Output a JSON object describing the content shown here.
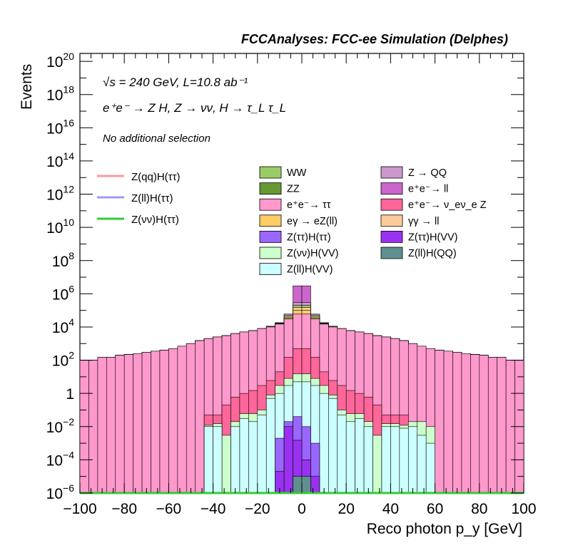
{
  "header": {
    "title": "FCCAnalyses: FCC-ee Simulation (Delphes)"
  },
  "annotations": {
    "energy_line": "√s = 240 GeV, L=10.8 ab⁻¹",
    "process_line": "e⁺e⁻ → Z H, Z → νν, H → τ_L τ_L",
    "selection": "No additional selection"
  },
  "chart_data": {
    "type": "bar",
    "stacked": true,
    "log_y": true,
    "xlabel": "Reco photon p_y [GeV]",
    "ylabel": "Events",
    "xlim": [
      -100,
      100
    ],
    "ylim": [
      1e-06,
      3e+20
    ],
    "bin_width": 4,
    "x_ticks": [
      "−100",
      "−80",
      "−60",
      "−40",
      "−20",
      "0",
      "20",
      "40",
      "60",
      "80",
      "100"
    ],
    "y_ticks": [
      {
        "base": "10",
        "exp": "20",
        "value": 1e+20
      },
      {
        "base": "10",
        "exp": "18",
        "value": 1e+18
      },
      {
        "base": "10",
        "exp": "16",
        "value": 1e+16
      },
      {
        "base": "10",
        "exp": "14",
        "value": 100000000000000.0
      },
      {
        "base": "10",
        "exp": "12",
        "value": 1000000000000.0
      },
      {
        "base": "10",
        "exp": "10",
        "value": 10000000000.0
      },
      {
        "base": "10",
        "exp": "8",
        "value": 100000000.0
      },
      {
        "base": "10",
        "exp": "6",
        "value": 1000000.0
      },
      {
        "base": "10",
        "exp": "4",
        "value": 10000.0
      },
      {
        "base": "10",
        "exp": "2",
        "value": 100.0
      },
      {
        "base": "1",
        "exp": "",
        "value": 1
      },
      {
        "base": "10",
        "exp": "−2",
        "value": 0.01
      },
      {
        "base": "10",
        "exp": "−4",
        "value": 0.0001
      },
      {
        "base": "10",
        "exp": "−6",
        "value": 1e-06
      }
    ],
    "stack_components": [
      {
        "name": "Z(ll)H(QQ)",
        "color": "#5f8f8f"
      },
      {
        "name": "Z(ττ)H(VV)",
        "color": "#9932f0"
      },
      {
        "name": "Z(ττ)H(ττ)",
        "color": "#9966ff"
      },
      {
        "name": "Z(ll)H(VV)",
        "color": "#ccffff"
      },
      {
        "name": "Z(νν)H(VV)",
        "color": "#ccffcc"
      },
      {
        "name": "e⁺e⁻ → ν_eν_e Z",
        "color": "#ff6699"
      },
      {
        "name": "e⁺e⁻ → ττ",
        "color": "#ff99cc"
      },
      {
        "name": "ZZ",
        "color": "#669933"
      },
      {
        "name": "eγ → eZ(ll)",
        "color": "#ffcc66"
      },
      {
        "name": "γγ → ll",
        "color": "#ffcc99"
      },
      {
        "name": "WW",
        "color": "#99cc66"
      },
      {
        "name": "Z → QQ",
        "color": "#cc99cc"
      },
      {
        "name": "e⁺e⁻ → ll",
        "color": "#cc66cc"
      }
    ],
    "bins_x_left": [
      -100,
      -96,
      -92,
      -88,
      -84,
      -80,
      -76,
      -72,
      -68,
      -64,
      -60,
      -56,
      -52,
      -48,
      -44,
      -40,
      -36,
      -32,
      -28,
      -24,
      -20,
      -16,
      -12,
      -8,
      -4,
      0,
      4,
      8,
      12,
      16,
      20,
      24,
      28,
      32,
      36,
      40,
      44,
      48,
      52,
      56,
      60,
      64,
      68,
      72,
      76,
      80,
      84,
      88,
      92,
      96
    ],
    "stack_tops": {
      "Z(ll)H(QQ)": [
        0,
        0,
        0,
        0,
        0,
        0,
        0,
        0,
        0,
        0,
        0,
        0,
        0,
        0,
        0,
        0,
        0,
        0,
        0,
        0,
        0,
        0,
        0,
        0,
        1e-05,
        1e-05,
        0,
        0,
        0,
        0,
        0,
        0,
        0,
        0,
        0,
        0,
        0,
        0,
        0,
        0,
        0,
        0,
        0,
        0,
        0,
        0,
        0,
        0,
        0,
        0
      ],
      "Z(ττ)H(VV)": [
        0,
        0,
        0,
        0,
        0,
        0,
        0,
        0,
        0,
        0,
        0,
        0,
        0,
        0,
        0,
        0,
        0,
        0,
        0,
        0,
        0,
        0,
        2e-05,
        0.01,
        0.0015,
        0.0001,
        1e-05,
        0,
        0,
        0,
        0,
        0,
        0,
        0,
        0,
        0,
        0,
        0,
        0,
        0,
        0,
        0,
        0,
        0,
        0,
        0,
        0,
        0,
        0,
        0
      ],
      "Z(ττ)H(ττ)": [
        0,
        0,
        0,
        0,
        0,
        0,
        0,
        0,
        0,
        0,
        0,
        0,
        0,
        0,
        0,
        0,
        0,
        0,
        0,
        0,
        0,
        0,
        0.002,
        0.02,
        0.04,
        0.01,
        0.001,
        0,
        0,
        0,
        0,
        0,
        0,
        0,
        0,
        0,
        0,
        0,
        0,
        0,
        0,
        0,
        0,
        0,
        0,
        0,
        0,
        0,
        0,
        0
      ],
      "Z(ll)H(VV)": [
        0,
        0,
        0,
        0,
        0,
        0,
        0,
        0,
        0,
        0,
        0,
        0,
        0,
        0,
        0.01,
        0.01,
        0,
        0.01,
        0.03,
        0.02,
        0.05,
        0.5,
        1,
        3,
        5,
        5,
        3,
        1,
        0.5,
        0.05,
        0.02,
        0.03,
        0.01,
        0,
        0.01,
        0.01,
        0.008,
        0.01,
        0.003,
        0.001,
        0,
        0,
        0,
        0,
        0,
        0,
        0,
        0,
        0,
        0
      ],
      "Z(νν)H(VV)": [
        0,
        0,
        0,
        0,
        0,
        0,
        0,
        0,
        0,
        0,
        0,
        0,
        0,
        0,
        0.012,
        0.015,
        0.003,
        0.02,
        0.06,
        0.06,
        0.1,
        0.8,
        3,
        8,
        15,
        15,
        8,
        3,
        0.8,
        0.1,
        0.06,
        0.06,
        0.02,
        0.003,
        0.015,
        0.015,
        0.012,
        0.02,
        0.02,
        0.01,
        0,
        0,
        0,
        0,
        0,
        0,
        0,
        0,
        0,
        0
      ],
      "e⁺e⁻ → ν_eν_e Z": [
        0,
        0,
        0,
        0,
        0,
        0,
        0,
        0,
        0,
        0,
        0,
        0,
        0,
        0,
        0.05,
        0.05,
        0.2,
        0.6,
        1,
        1.5,
        3,
        6,
        20,
        150,
        500,
        500,
        150,
        20,
        6,
        3,
        1.5,
        1,
        0.6,
        0.2,
        0.05,
        0.05,
        0.05,
        0,
        0,
        0,
        0,
        0,
        0,
        0,
        0,
        0,
        0,
        0,
        0,
        0
      ],
      "e⁺e⁻ → ττ": [
        100,
        100,
        150,
        150,
        200,
        220,
        250,
        300,
        350,
        400,
        500,
        700,
        1000,
        1500,
        2000,
        2500,
        3000,
        4000,
        5000,
        6000,
        8000,
        10000,
        15000,
        30000,
        60000,
        60000,
        30000,
        15000,
        10000,
        8000,
        6000,
        5000,
        4000,
        3000,
        2500,
        2000,
        1500,
        1000,
        700,
        500,
        400,
        350,
        300,
        250,
        220,
        200,
        150,
        150,
        100,
        100
      ],
      "ZZ": [
        100,
        100,
        150,
        150,
        200,
        220,
        250,
        300,
        350,
        400,
        500,
        700,
        1000,
        1500,
        2000,
        2500,
        3000,
        4000,
        5000,
        6000,
        8000,
        10000,
        15000,
        30000,
        60000,
        60000,
        30000,
        15000,
        10000,
        8000,
        6000,
        5000,
        4000,
        3000,
        2500,
        2000,
        1500,
        1000,
        700,
        500,
        400,
        350,
        300,
        250,
        220,
        200,
        150,
        150,
        100,
        100
      ],
      "eγ → eZ(ll)": [
        100,
        100,
        150,
        150,
        200,
        220,
        250,
        300,
        350,
        400,
        500,
        700,
        1000,
        1500,
        2000,
        2500,
        3000,
        4000,
        5000,
        6000,
        8000,
        10000,
        16000,
        35000,
        100000,
        100000,
        35000,
        16000,
        10000,
        8000,
        6000,
        5000,
        4000,
        3000,
        2500,
        2000,
        1500,
        1000,
        700,
        500,
        400,
        350,
        300,
        250,
        220,
        200,
        150,
        150,
        100,
        100
      ],
      "γγ → ll": [
        100,
        100,
        150,
        150,
        200,
        220,
        250,
        300,
        350,
        400,
        500,
        700,
        1000,
        1500,
        2000,
        2500,
        3000,
        4000,
        5000,
        6000,
        8000,
        10000,
        17000,
        40000,
        150000,
        150000,
        40000,
        17000,
        10000,
        8000,
        6000,
        5000,
        4000,
        3000,
        2500,
        2000,
        1500,
        1000,
        700,
        500,
        400,
        350,
        300,
        250,
        220,
        200,
        150,
        150,
        100,
        100
      ],
      "WW": [
        100,
        100,
        150,
        150,
        200,
        220,
        250,
        300,
        350,
        400,
        500,
        700,
        1000,
        1500,
        2000,
        2500,
        3000,
        4000,
        5000,
        6000,
        8000,
        11000,
        18000,
        50000,
        200000,
        200000,
        50000,
        18000,
        11000,
        8000,
        6000,
        5000,
        4000,
        3000,
        2500,
        2000,
        1500,
        1000,
        700,
        500,
        400,
        350,
        300,
        250,
        220,
        200,
        150,
        150,
        100,
        100
      ],
      "Z → QQ": [
        100,
        100,
        150,
        150,
        200,
        220,
        250,
        300,
        350,
        400,
        500,
        700,
        1000,
        1500,
        2000,
        2500,
        3000,
        4000,
        5000,
        6000,
        8000,
        11000,
        18000,
        60000,
        300000,
        300000,
        60000,
        18000,
        11000,
        8000,
        6000,
        5000,
        4000,
        3000,
        2500,
        2000,
        1500,
        1000,
        700,
        500,
        400,
        350,
        300,
        250,
        220,
        200,
        150,
        150,
        100,
        100
      ],
      "e⁺e⁻ → ll": [
        100,
        100,
        150,
        150,
        200,
        220,
        250,
        300,
        350,
        400,
        500,
        700,
        1000,
        1500,
        2000,
        2500,
        3000,
        4000,
        5000,
        6000,
        8000,
        11000,
        18000,
        60000,
        3000000,
        3000000,
        60000,
        18000,
        11000,
        8000,
        6000,
        5000,
        4000,
        3000,
        2500,
        2000,
        1500,
        1000,
        700,
        500,
        400,
        350,
        300,
        250,
        220,
        200,
        150,
        150,
        100,
        100
      ]
    },
    "signal_lines": [
      {
        "name": "Z(qq)H(ττ)",
        "color": "#ff9999",
        "values": [
          0,
          0,
          0,
          0,
          0,
          0,
          0,
          0,
          0,
          0,
          0,
          0,
          0,
          0,
          0,
          0,
          0,
          0,
          0,
          0,
          0,
          0,
          0,
          0,
          0,
          0,
          0,
          0,
          0,
          0,
          0,
          0,
          0,
          0,
          0,
          0,
          0,
          0,
          0,
          0,
          0,
          0,
          0,
          0,
          0,
          0,
          0,
          0,
          0,
          0
        ]
      },
      {
        "name": "Z(ll)H(ττ)",
        "color": "#9999ff",
        "values": [
          0,
          0,
          0,
          0,
          0,
          0,
          0,
          0,
          0,
          0,
          0,
          0,
          0,
          0,
          0,
          0,
          0,
          0,
          0,
          0,
          0,
          0,
          0,
          0,
          0,
          0,
          0,
          0,
          0,
          0,
          0,
          0,
          0,
          0,
          0,
          0,
          0,
          0,
          0,
          0,
          0,
          0,
          0,
          0,
          0,
          0,
          0,
          0,
          0,
          0
        ]
      },
      {
        "name": "Z(νν)H(ττ)",
        "color": "#33cc33",
        "values": [
          0,
          0,
          0,
          0,
          0,
          0,
          0,
          0,
          0,
          0,
          0,
          0,
          0,
          0,
          0,
          0,
          0,
          0,
          0,
          0,
          0,
          0,
          0,
          0,
          0,
          0,
          0,
          0,
          0,
          0,
          0,
          0,
          0,
          0,
          0,
          0,
          0,
          0,
          0,
          0,
          0,
          0,
          0,
          0,
          0,
          0,
          0,
          0,
          0,
          0
        ]
      }
    ],
    "legend_lines": [
      "Z(qq)H(ττ)",
      "Z(ll)H(ττ)",
      "Z(νν)H(ττ)"
    ],
    "legend_col1": [
      "WW",
      "ZZ",
      "e⁺e⁻→ ττ",
      "eγ → eZ(ll)",
      "Z(ττ)H(ττ)",
      "Z(νν)H(VV)",
      "Z(ll)H(VV)"
    ],
    "legend_col2": [
      "Z → QQ",
      "e⁺e⁻→ ll",
      "e⁺e⁻→ ν_eν_e Z",
      "γγ → ll",
      "Z(ττ)H(VV)",
      "Z(ll)H(QQ)"
    ],
    "legend_colors": {
      "WW": "#99cc66",
      "ZZ": "#669933",
      "e⁺e⁻→ ττ": "#ff99cc",
      "eγ → eZ(ll)": "#ffcc66",
      "Z(ττ)H(ττ)": "#9966ff",
      "Z(νν)H(VV)": "#ccffcc",
      "Z(ll)H(VV)": "#ccffff",
      "Z → QQ": "#cc99cc",
      "e⁺e⁻→ ll": "#cc66cc",
      "e⁺e⁻→ ν_eν_e Z": "#ff6699",
      "γγ → ll": "#ffcc99",
      "Z(ττ)H(VV)": "#9932f0",
      "Z(ll)H(QQ)": "#5f8f8f"
    },
    "legend_placement": "top-center"
  }
}
